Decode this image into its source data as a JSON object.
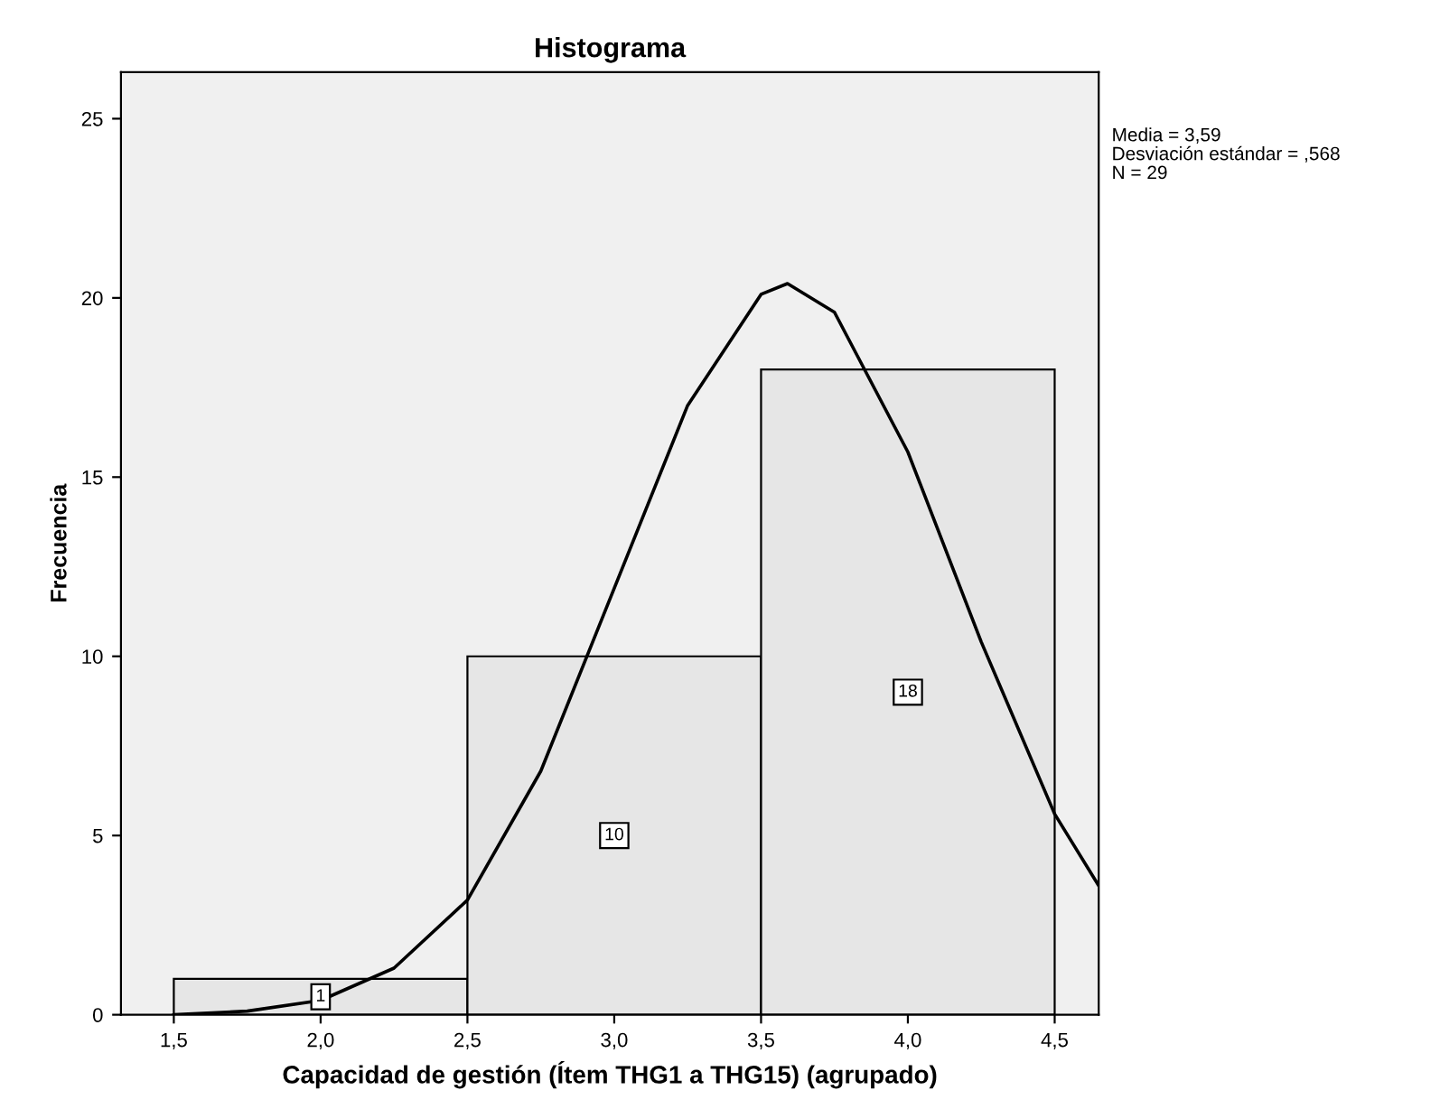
{
  "chart_data": {
    "type": "histogram",
    "title": "Histograma",
    "xlabel": "Capacidad de gestión (Ítem THG1 a THG15) (agrupado)",
    "ylabel": "Frecuencia",
    "bins": [
      1.5,
      2.5,
      3.5,
      4.5
    ],
    "values": [
      1,
      10,
      18
    ],
    "color": "#e6e6e6",
    "value_labels": [
      "1",
      "10",
      "18"
    ],
    "series": [
      {
        "type": "line",
        "color": "#000000",
        "x": [
          1.5,
          1.75,
          2.0,
          2.25,
          2.5,
          2.75,
          3.0,
          3.25,
          3.5,
          3.59,
          3.75,
          4.0,
          4.25,
          4.5,
          4.65
        ],
        "values": [
          0.0,
          0.1,
          0.4,
          1.3,
          3.2,
          6.8,
          11.9,
          17.0,
          20.1,
          20.4,
          19.6,
          15.7,
          10.4,
          5.6,
          3.6
        ]
      }
    ],
    "xlim": [
      1.32,
      4.65
    ],
    "ylim": [
      0,
      26.3
    ],
    "xticks": [
      {
        "value": 1.5,
        "label": "1,5"
      },
      {
        "value": 2.0,
        "label": "2,0"
      },
      {
        "value": 2.5,
        "label": "2,5"
      },
      {
        "value": 3.0,
        "label": "3,0"
      },
      {
        "value": 3.5,
        "label": "3,5"
      },
      {
        "value": 4.0,
        "label": "4,0"
      },
      {
        "value": 4.5,
        "label": "4,5"
      }
    ],
    "yticks": [
      0,
      5,
      10,
      15,
      20,
      25
    ],
    "grid": false,
    "legend": false,
    "annotations": [
      "Media = 3,59",
      "Desviación estándar = ,568",
      "N = 29"
    ]
  }
}
